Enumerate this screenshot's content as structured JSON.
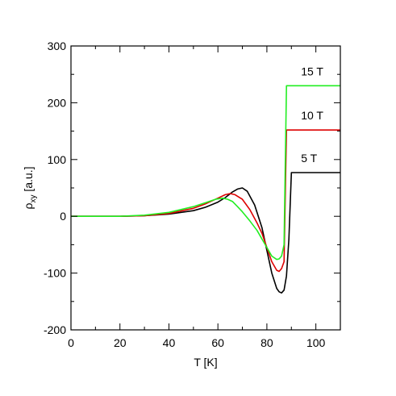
{
  "chart_data": {
    "type": "line",
    "title": "",
    "xlabel": "T [K]",
    "ylabel": {
      "base": "ρ",
      "sub": "xy",
      "rest": " [a.u.]"
    },
    "xlim": [
      0,
      110
    ],
    "ylim": [
      -200,
      300
    ],
    "xticks": [
      0,
      20,
      40,
      60,
      80,
      100
    ],
    "yticks": [
      -200,
      -100,
      0,
      100,
      200,
      300
    ],
    "grid": false,
    "legend": "none",
    "series": [
      {
        "name": "5 T",
        "color": "#000000",
        "x": [
          0,
          20,
          30,
          40,
          50,
          55,
          60,
          63,
          66,
          68,
          70,
          72,
          75,
          78,
          80,
          82,
          84,
          85,
          86,
          87,
          88,
          89,
          90,
          95,
          100,
          110
        ],
        "y": [
          0,
          0,
          1,
          4,
          10,
          16,
          25,
          33,
          43,
          48,
          50,
          44,
          20,
          -20,
          -60,
          -100,
          -127,
          -133,
          -135,
          -130,
          -105,
          -40,
          77,
          77,
          77,
          77
        ]
      },
      {
        "name": "10 T",
        "color": "#dd0000",
        "x": [
          0,
          20,
          30,
          40,
          50,
          55,
          60,
          63,
          65,
          67,
          70,
          73,
          76,
          78,
          80,
          82,
          84,
          85,
          86,
          87,
          88,
          100,
          110
        ],
        "y": [
          0,
          0,
          1,
          5,
          14,
          22,
          32,
          38,
          40,
          38,
          30,
          12,
          -12,
          -30,
          -55,
          -80,
          -95,
          -97,
          -92,
          -80,
          152,
          152,
          152
        ]
      },
      {
        "name": "15 T",
        "color": "#22ee22",
        "x": [
          0,
          20,
          30,
          40,
          50,
          55,
          59,
          62,
          64,
          66,
          68,
          70,
          73,
          76,
          78,
          80,
          82,
          84,
          85,
          86,
          87,
          88,
          100,
          110
        ],
        "y": [
          0,
          0,
          2,
          7,
          17,
          24,
          30,
          32,
          30,
          26,
          17,
          8,
          -8,
          -25,
          -40,
          -55,
          -70,
          -76,
          -75,
          -70,
          -50,
          230,
          230,
          230
        ]
      }
    ]
  }
}
